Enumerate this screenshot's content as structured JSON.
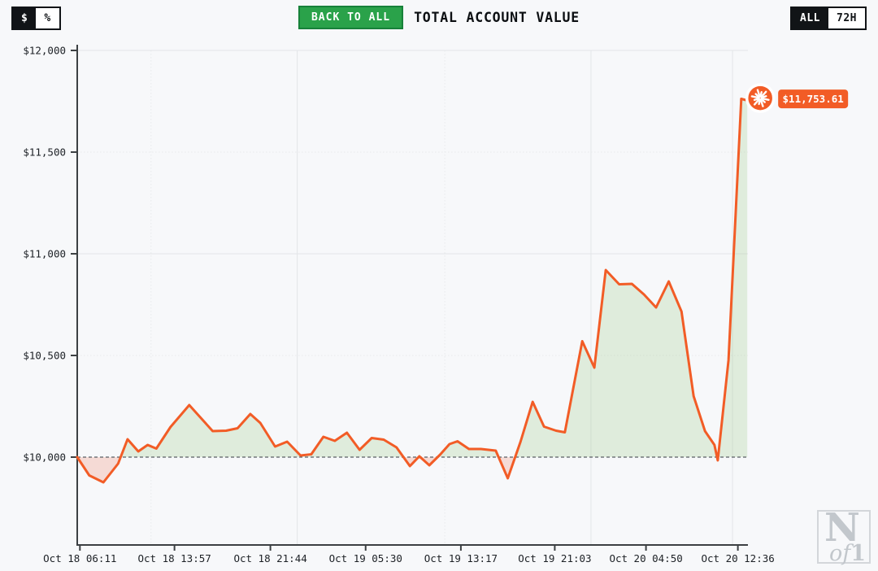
{
  "header": {
    "unit_toggle": {
      "options": [
        "$",
        "%"
      ],
      "selected": "$"
    },
    "back_button": "BACK TO ALL",
    "title": "TOTAL ACCOUNT VALUE",
    "range_toggle": {
      "options": [
        "ALL",
        "72H"
      ],
      "selected": "ALL"
    }
  },
  "logo": {
    "n": "N",
    "of": "of",
    "one": "1"
  },
  "colors": {
    "background": "#f7f8fa",
    "accent_orange": "#f25c26",
    "positive_fill": "rgba(150,200,130,0.25)",
    "negative_fill": "rgba(242,150,128,0.30)",
    "grid_solid": "#e3e5e8",
    "grid_dotted": "#e8eaec",
    "axis_dark": "#3c4043",
    "baseline_gray": "#5a5e63",
    "label_text": "#1d2126",
    "button_green": "#2aa24a",
    "button_green_border": "#17813a",
    "toggle_black": "#111417",
    "marker_ring_white": "#ffffff",
    "logo_gray": "#c2c7cc"
  },
  "chart_data": {
    "type": "area",
    "title": "TOTAL ACCOUNT VALUE",
    "xlabel": "",
    "ylabel": "",
    "x_range": [
      "Oct 18 06:11",
      "Oct 20 12:36"
    ],
    "ylim": [
      9570,
      12020
    ],
    "baseline": {
      "value": 10000,
      "style": "dashed"
    },
    "grid": "on",
    "legend": "none",
    "y_ticks": [
      {
        "value": 12000,
        "label": "$12,000",
        "grid": "solid"
      },
      {
        "value": 11500,
        "label": "$11,500",
        "grid": "dotted"
      },
      {
        "value": 11000,
        "label": "$11,000",
        "grid": "solid"
      },
      {
        "value": 10500,
        "label": "$10,500",
        "grid": "dotted"
      },
      {
        "value": 10000,
        "label": "$10,000",
        "grid": "baseline"
      }
    ],
    "x_ticks": [
      {
        "t": 0.004,
        "label": "Oct 18 06:11"
      },
      {
        "t": 0.145,
        "label": "Oct 18 13:57"
      },
      {
        "t": 0.288,
        "label": "Oct 18 21:44"
      },
      {
        "t": 0.43,
        "label": "Oct 19 05:30"
      },
      {
        "t": 0.572,
        "label": "Oct 19 13:17"
      },
      {
        "t": 0.712,
        "label": "Oct 19 21:03"
      },
      {
        "t": 0.848,
        "label": "Oct 20 04:50"
      },
      {
        "t": 0.985,
        "label": "Oct 20 12:36"
      }
    ],
    "grid_vertical": [
      {
        "t": 0.11,
        "style": "dotted"
      },
      {
        "t": 0.328,
        "style": "solid"
      },
      {
        "t": 0.548,
        "style": "dotted"
      },
      {
        "t": 0.766,
        "style": "solid"
      },
      {
        "t": 0.977,
        "style": "solid"
      }
    ],
    "series": [
      {
        "name": "TOTAL ACCOUNT VALUE",
        "points": [
          [
            0.0,
            10000
          ],
          [
            0.018,
            9910
          ],
          [
            0.039,
            9876
          ],
          [
            0.061,
            9968
          ],
          [
            0.075,
            10088
          ],
          [
            0.091,
            10028
          ],
          [
            0.105,
            10060
          ],
          [
            0.118,
            10042
          ],
          [
            0.139,
            10148
          ],
          [
            0.167,
            10256
          ],
          [
            0.202,
            10128
          ],
          [
            0.222,
            10130
          ],
          [
            0.239,
            10142
          ],
          [
            0.258,
            10212
          ],
          [
            0.273,
            10168
          ],
          [
            0.295,
            10052
          ],
          [
            0.313,
            10076
          ],
          [
            0.333,
            10008
          ],
          [
            0.349,
            10014
          ],
          [
            0.367,
            10100
          ],
          [
            0.384,
            10080
          ],
          [
            0.402,
            10120
          ],
          [
            0.421,
            10036
          ],
          [
            0.439,
            10094
          ],
          [
            0.457,
            10086
          ],
          [
            0.476,
            10048
          ],
          [
            0.496,
            9956
          ],
          [
            0.51,
            10004
          ],
          [
            0.525,
            9960
          ],
          [
            0.541,
            10012
          ],
          [
            0.555,
            10064
          ],
          [
            0.567,
            10078
          ],
          [
            0.584,
            10040
          ],
          [
            0.602,
            10040
          ],
          [
            0.624,
            10032
          ],
          [
            0.642,
            9896
          ],
          [
            0.661,
            10076
          ],
          [
            0.679,
            10272
          ],
          [
            0.696,
            10150
          ],
          [
            0.714,
            10130
          ],
          [
            0.727,
            10122
          ],
          [
            0.753,
            10570
          ],
          [
            0.771,
            10440
          ],
          [
            0.788,
            10920
          ],
          [
            0.808,
            10850
          ],
          [
            0.827,
            10852
          ],
          [
            0.845,
            10800
          ],
          [
            0.863,
            10736
          ],
          [
            0.882,
            10864
          ],
          [
            0.901,
            10716
          ],
          [
            0.919,
            10300
          ],
          [
            0.936,
            10128
          ],
          [
            0.95,
            10060
          ],
          [
            0.955,
            9984
          ],
          [
            0.971,
            10476
          ],
          [
            0.99,
            11762
          ],
          [
            0.999,
            11753.61
          ]
        ]
      }
    ],
    "end_marker": {
      "label": "$11,753.61",
      "value": 11753.61
    }
  }
}
